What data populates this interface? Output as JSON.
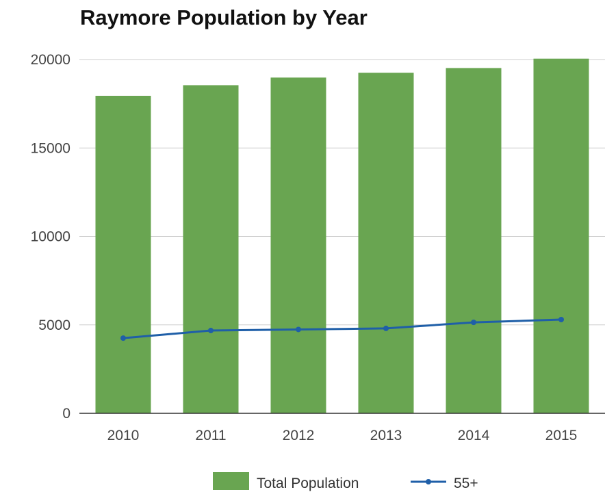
{
  "chart_data": {
    "type": "bar",
    "title": "Raymore Population by Year",
    "xlabel": "",
    "ylabel": "",
    "categories": [
      "2010",
      "2011",
      "2012",
      "2013",
      "2014",
      "2015"
    ],
    "ylim": [
      0,
      20000
    ],
    "yticks": [
      "0",
      "5000",
      "10000",
      "15000",
      "20000"
    ],
    "series": [
      {
        "name": "Total Population",
        "type": "bar",
        "color": "#69a551",
        "values": [
          17950,
          18550,
          18980,
          19250,
          19520,
          20050
        ]
      },
      {
        "name": "55+",
        "type": "line",
        "color": "#1f5fa8",
        "values": [
          4250,
          4680,
          4740,
          4800,
          5140,
          5300
        ]
      }
    ],
    "grid": true,
    "legend_position": "bottom"
  }
}
